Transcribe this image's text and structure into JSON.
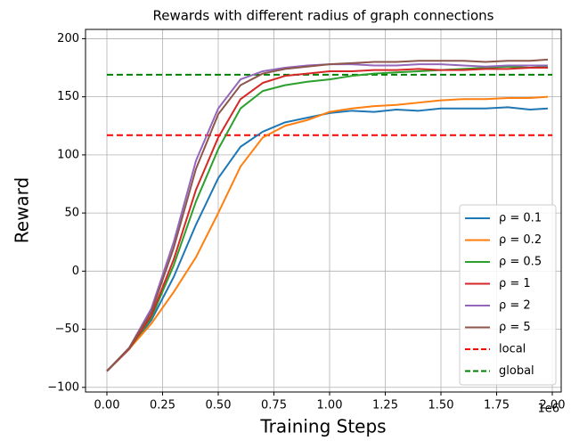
{
  "chart_data": {
    "type": "line",
    "title": "Rewards with different radius of graph connections",
    "xlabel": "Training Steps",
    "ylabel": "Reward",
    "x_offset_label": "1e6",
    "x": [
      0,
      0.1,
      0.2,
      0.3,
      0.4,
      0.5,
      0.6,
      0.7,
      0.8,
      0.9,
      1.0,
      1.1,
      1.2,
      1.3,
      1.4,
      1.5,
      1.6,
      1.7,
      1.8,
      1.9,
      1.98
    ],
    "series": [
      {
        "name": "ρ = 0.1",
        "color": "#1f77b4",
        "values": [
          -86,
          -67,
          -42,
          -5,
          40,
          80,
          107,
          120,
          128,
          132,
          136,
          138,
          137,
          139,
          138,
          140,
          140,
          140,
          141,
          139,
          140
        ]
      },
      {
        "name": "ρ = 0.2",
        "color": "#ff7f0e",
        "values": [
          -86,
          -67,
          -45,
          -18,
          12,
          50,
          90,
          115,
          125,
          130,
          137,
          140,
          142,
          143,
          145,
          147,
          148,
          148,
          149,
          149,
          150
        ]
      },
      {
        "name": "ρ = 0.5",
        "color": "#2ca02c",
        "values": [
          -86,
          -67,
          -40,
          5,
          60,
          105,
          140,
          155,
          160,
          163,
          165,
          168,
          170,
          171,
          172,
          173,
          174,
          175,
          176,
          175,
          176
        ]
      },
      {
        "name": "ρ = 1",
        "color": "#d62728",
        "values": [
          -86,
          -67,
          -38,
          10,
          70,
          115,
          148,
          162,
          168,
          170,
          172,
          172,
          173,
          173,
          174,
          173,
          173,
          174,
          174,
          175,
          175
        ]
      },
      {
        "name": "ρ = 2",
        "color": "#9467bd",
        "values": [
          -86,
          -66,
          -32,
          25,
          95,
          140,
          165,
          172,
          175,
          177,
          178,
          178,
          177,
          177,
          178,
          178,
          177,
          176,
          177,
          177,
          177
        ]
      },
      {
        "name": "ρ = 5",
        "color": "#8c564b",
        "values": [
          -86,
          -66,
          -35,
          20,
          88,
          135,
          160,
          170,
          174,
          176,
          178,
          179,
          180,
          180,
          181,
          181,
          181,
          180,
          181,
          181,
          182
        ]
      }
    ],
    "hlines": [
      {
        "name": "local",
        "color": "#ff0000",
        "value": 117
      },
      {
        "name": "global",
        "color": "#008000",
        "value": 169
      }
    ],
    "xlim": [
      -0.096,
      2.04
    ],
    "ylim": [
      -104,
      208
    ],
    "xticks": [
      {
        "value": 0,
        "label": "0.00"
      },
      {
        "value": 0.25,
        "label": "0.25"
      },
      {
        "value": 0.5,
        "label": "0.50"
      },
      {
        "value": 0.75,
        "label": "0.75"
      },
      {
        "value": 1.0,
        "label": "1.00"
      },
      {
        "value": 1.25,
        "label": "1.25"
      },
      {
        "value": 1.5,
        "label": "1.50"
      },
      {
        "value": 1.75,
        "label": "1.75"
      },
      {
        "value": 2.0,
        "label": "2.00"
      }
    ],
    "yticks": [
      {
        "value": -100,
        "label": "−100"
      },
      {
        "value": -50,
        "label": "−50"
      },
      0,
      50,
      100,
      150,
      200
    ],
    "grid": true,
    "legend": "lower right"
  }
}
